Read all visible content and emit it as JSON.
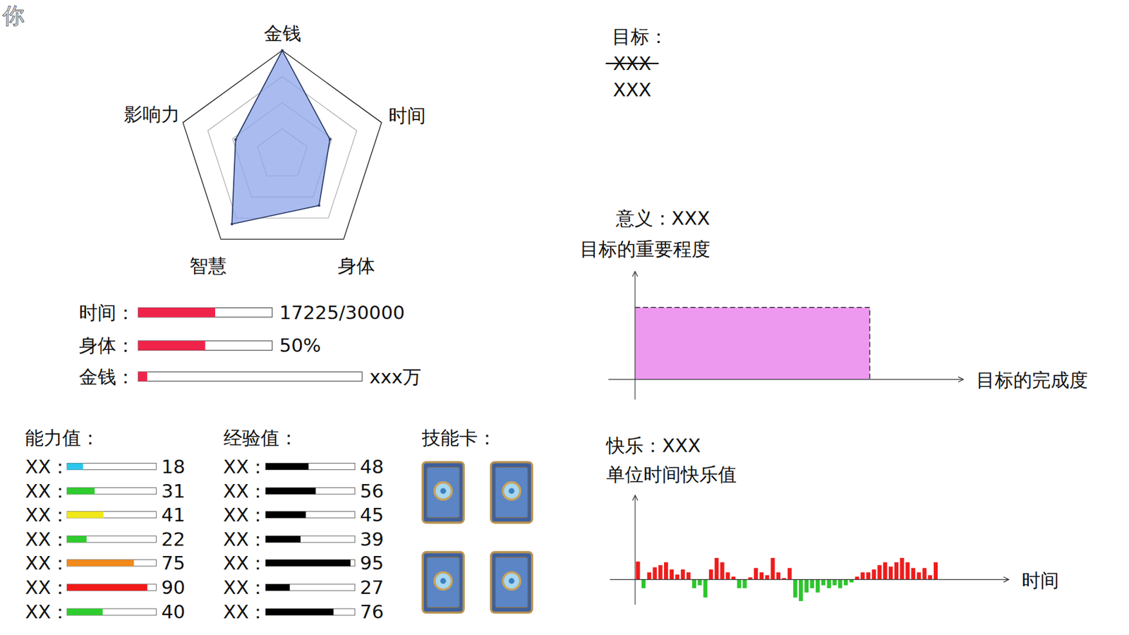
{
  "corner_label": "你",
  "chart_data": [
    {
      "type": "radar",
      "categories": [
        "金钱",
        "时间",
        "身体",
        "智慧",
        "影响力"
      ],
      "values": [
        100,
        48,
        60,
        82,
        47
      ],
      "ylim": [
        0,
        100
      ],
      "yticks": [
        25,
        50,
        75,
        100
      ],
      "tick_labels": false,
      "color": "#8ea6ea"
    },
    {
      "type": "bar",
      "title": "快乐：XXX",
      "subtitle": "单位时间快乐值",
      "x_label": "时间",
      "x": [
        0,
        1,
        2,
        3,
        4,
        5,
        6,
        7,
        8,
        9,
        10,
        11,
        12,
        13,
        14,
        15,
        16,
        17,
        18,
        19,
        20,
        21,
        22,
        23,
        24,
        25,
        26,
        27,
        28,
        29,
        30,
        31,
        32,
        33,
        34,
        35,
        36,
        37,
        38,
        39,
        40,
        41,
        42,
        43,
        44,
        45,
        46,
        47,
        48,
        49,
        50,
        51,
        52,
        53
      ],
      "values": [
        25,
        -12,
        10,
        17,
        20,
        24,
        14,
        7,
        14,
        10,
        -12,
        -8,
        -25,
        14,
        30,
        24,
        10,
        4,
        -12,
        -12,
        3,
        16,
        10,
        6,
        30,
        10,
        2,
        16,
        -25,
        -30,
        -18,
        -12,
        -18,
        -8,
        -12,
        -8,
        -12,
        -8,
        -4,
        4,
        10,
        10,
        14,
        20,
        24,
        18,
        24,
        30,
        24,
        16,
        10,
        16,
        6,
        24
      ],
      "colors": [
        "#ee1c1c",
        "#2dc52d",
        "#ee1c1c",
        "#ee1c1c",
        "#ee1c1c",
        "#ee1c1c",
        "#ee1c1c",
        "#ee1c1c",
        "#ee1c1c",
        "#ee1c1c",
        "#2dc52d",
        "#2dc52d",
        "#2dc52d",
        "#ee1c1c",
        "#ee1c1c",
        "#ee1c1c",
        "#ee1c1c",
        "#ee1c1c",
        "#2dc52d",
        "#2dc52d",
        "#ee1c1c",
        "#ee1c1c",
        "#ee1c1c",
        "#ee1c1c",
        "#ee1c1c",
        "#ee1c1c",
        "#ee1c1c",
        "#ee1c1c",
        "#2dc52d",
        "#2dc52d",
        "#2dc52d",
        "#2dc52d",
        "#2dc52d",
        "#2dc52d",
        "#2dc52d",
        "#2dc52d",
        "#2dc52d",
        "#2dc52d",
        "#2dc52d",
        "#ee1c1c",
        "#ee1c1c",
        "#ee1c1c",
        "#ee1c1c",
        "#ee1c1c",
        "#ee1c1c",
        "#ee1c1c",
        "#ee1c1c",
        "#ee1c1c",
        "#ee1c1c",
        "#ee1c1c",
        "#ee1c1c",
        "#ee1c1c",
        "#ee1c1c",
        "#ee1c1c"
      ],
      "xlim": [
        -5,
        66
      ],
      "ylim": [
        -35,
        117
      ],
      "tick_labels": false
    }
  ],
  "status": [
    {
      "label": "时间：",
      "value": 17225,
      "max": 30000,
      "text": "17225/30000"
    },
    {
      "label": "身体：",
      "value": 50,
      "max": 100,
      "text": "50%"
    },
    {
      "label": "金钱：",
      "value": 4,
      "max": 100,
      "text": "xxx万"
    }
  ],
  "ability": {
    "title": "能力值：",
    "max": 100,
    "rows": [
      {
        "label": "XX：",
        "value": 18,
        "color": "#2cc6ea"
      },
      {
        "label": "XX：",
        "value": 31,
        "color": "#2ecc2e"
      },
      {
        "label": "XX：",
        "value": 41,
        "color": "#f0e81a"
      },
      {
        "label": "XX：",
        "value": 22,
        "color": "#2ecc2e"
      },
      {
        "label": "XX：",
        "value": 75,
        "color": "#f08a1a"
      },
      {
        "label": "XX：",
        "value": 90,
        "color": "#f01a1a"
      },
      {
        "label": "XX：",
        "value": 40,
        "color": "#2ecc2e"
      }
    ]
  },
  "experience": {
    "title": "经验值：",
    "max": 100,
    "color": "#000000",
    "rows": [
      {
        "label": "XX：",
        "value": 48
      },
      {
        "label": "XX：",
        "value": 56
      },
      {
        "label": "XX：",
        "value": 45
      },
      {
        "label": "XX：",
        "value": 39
      },
      {
        "label": "XX：",
        "value": 95
      },
      {
        "label": "XX：",
        "value": 27
      },
      {
        "label": "XX：",
        "value": 76
      }
    ]
  },
  "skill_cards": {
    "title": "技能卡：",
    "count": 4
  },
  "goal": {
    "title": "目标：",
    "struck": "XXX",
    "current": "XXX"
  },
  "meaning": {
    "title": "意义：XXX",
    "y_label": "目标的重要程度",
    "x_label": "目标的完成度"
  }
}
